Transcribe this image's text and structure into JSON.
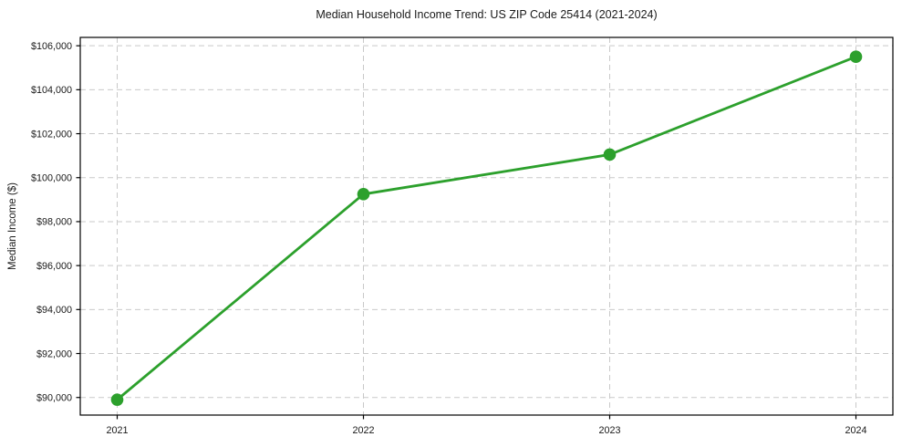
{
  "chart_data": {
    "type": "line",
    "title": "Median Household Income Trend: US ZIP Code 25414 (2021-2024)",
    "xlabel": "",
    "ylabel": "Median Income ($)",
    "x": [
      2021,
      2022,
      2023,
      2024
    ],
    "values": [
      89900,
      99250,
      101050,
      105500
    ],
    "x_tick_labels": [
      "2021",
      "2022",
      "2023",
      "2024"
    ],
    "y_ticks": [
      90000,
      92000,
      94000,
      96000,
      98000,
      100000,
      102000,
      104000,
      106000
    ],
    "y_tick_labels": [
      "$90,000",
      "$92,000",
      "$94,000",
      "$96,000",
      "$98,000",
      "$100,000",
      "$102,000",
      "$104,000",
      "$106,000"
    ],
    "xlim": [
      2020.85,
      2024.15
    ],
    "ylim": [
      89200,
      106380
    ],
    "grid": true,
    "legend": "none",
    "line_color": "#2ca02c",
    "marker": "circle",
    "marker_radius": 6.8,
    "line_width": 2.8,
    "grid_color": "#c9c9c9",
    "axis_color": "#000000",
    "tick_label_size": 10.8,
    "background_color": "#ffffff"
  }
}
